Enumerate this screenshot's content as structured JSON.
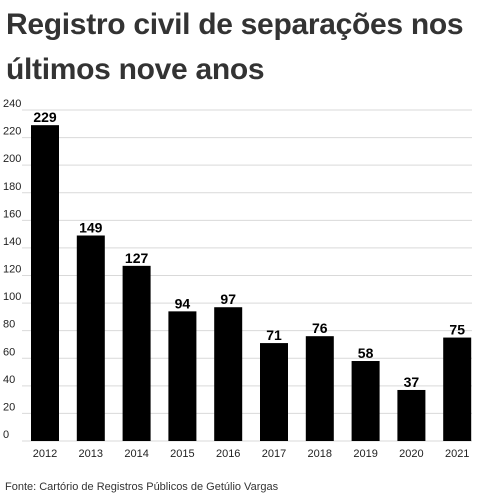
{
  "title": "Registro civil de separações nos últimos nove anos",
  "source": "Fonte: Cartório de Registros Públicos de Getúlio Vargas",
  "colors": {
    "bar": "#000000",
    "grid": "#d9d9d9",
    "title": "#333333"
  },
  "chart_data": {
    "type": "bar",
    "title": "Registro civil de separações nos últimos nove anos",
    "categories": [
      "2012",
      "2013",
      "2014",
      "2015",
      "2016",
      "2017",
      "2018",
      "2019",
      "2020",
      "2021"
    ],
    "values": [
      229,
      149,
      127,
      94,
      97,
      71,
      76,
      58,
      37,
      75
    ],
    "ylim": [
      0,
      240
    ],
    "yticks": [
      0,
      20,
      40,
      60,
      80,
      100,
      120,
      140,
      160,
      180,
      200,
      220,
      240
    ],
    "grid": true,
    "data_labels": true,
    "xlabel": "",
    "ylabel": ""
  }
}
